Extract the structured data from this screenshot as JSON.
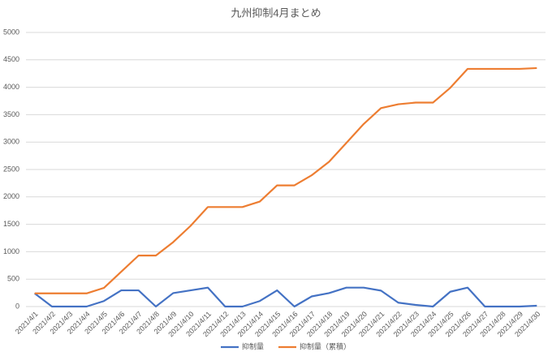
{
  "chart_data": {
    "type": "line",
    "title": "九州抑制4月まとめ",
    "categories": [
      "2021/4/1",
      "2021/4/2",
      "2021/4/3",
      "2021/4/4",
      "2021/4/5",
      "2021/4/6",
      "2021/4/7",
      "2021/4/8",
      "2021/4/9",
      "2021/4/10",
      "2021/4/11",
      "2021/4/12",
      "2021/4/13",
      "2021/4/14",
      "2021/4/15",
      "2021/4/16",
      "2021/4/17",
      "2021/4/18",
      "2021/4/19",
      "2021/4/20",
      "2021/4/21",
      "2021/4/22",
      "2021/4/23",
      "2021/4/24",
      "2021/4/25",
      "2021/4/26",
      "2021/4/27",
      "2021/4/28",
      "2021/4/29",
      "2021/4/30"
    ],
    "series": [
      {
        "name": "抑制量",
        "color": "#4472c4",
        "values": [
          240,
          0,
          0,
          0,
          100,
          295,
          295,
          0,
          245,
          295,
          345,
          0,
          0,
          100,
          295,
          0,
          185,
          245,
          345,
          345,
          290,
          70,
          30,
          0,
          270,
          345,
          0,
          0,
          0,
          15
        ]
      },
      {
        "name": "抑制量（累積）",
        "color": "#ed7d31",
        "values": [
          240,
          240,
          240,
          240,
          340,
          635,
          930,
          930,
          1175,
          1470,
          1815,
          1815,
          1815,
          1915,
          2210,
          2210,
          2395,
          2640,
          2985,
          3330,
          3620,
          3690,
          3720,
          3720,
          3990,
          4335,
          4335,
          4335,
          4335,
          4350
        ]
      }
    ],
    "ylim": [
      0,
      5000
    ],
    "yticks": [
      0,
      500,
      1000,
      1500,
      2000,
      2500,
      3000,
      3500,
      4000,
      4500,
      5000
    ],
    "grid": true,
    "legend": "bottom"
  }
}
